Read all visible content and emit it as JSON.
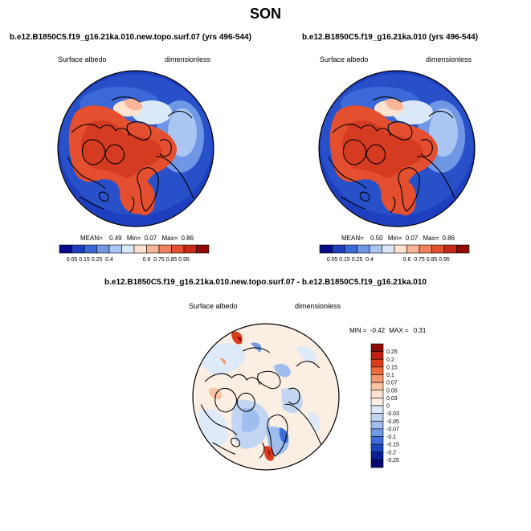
{
  "season": "SON",
  "panels": [
    {
      "case": "b.e12.B1850C5.f19_g16.21ka.010.new.topo.surf.07 (yrs 496-544)",
      "variable": "Surface albedo",
      "units": "dimensionless",
      "stats": {
        "mean_label": "MEAN=",
        "mean": "0.49",
        "min_label": "Min=",
        "min": "0.07",
        "max_label": "Max=",
        "max": "0.86"
      }
    },
    {
      "case": "b.e12.B1850C5.f19_g16.21ka.010 (yrs 496-544)",
      "variable": "Surface albedo",
      "units": "dimensionless",
      "stats": {
        "mean_label": "MEAN=",
        "mean": "0.50",
        "min_label": "Min=",
        "min": "0.07",
        "max_label": "Max=",
        "max": "0.86"
      }
    }
  ],
  "diff": {
    "case": "b.e12.B1850C5.f19_g16.21ka.010.new.topo.surf.07 - b.e12.B1850C5.f19_g16.21ka.010",
    "variable": "Surface albedo",
    "units": "dimensionless",
    "stats": {
      "min_label": "MIN =",
      "min": "-0.42",
      "max_label": "MAX =",
      "max": "0.31"
    }
  },
  "albedo_colorbar": {
    "labels": [
      "0.05",
      "0.15",
      "0.25",
      "0.4",
      "0.6",
      "0.75",
      "0.85",
      "0.95"
    ],
    "colors": [
      "#08088a",
      "#1e3fbf",
      "#3b6ad8",
      "#6f97e6",
      "#a9c6f2",
      "#dbe8fa",
      "#fde3d0",
      "#f9b595",
      "#f2805c",
      "#e4502f",
      "#c82a16",
      "#8f0b06"
    ]
  },
  "diff_colorbar": {
    "labels": [
      "0.25",
      "0.2",
      "0.15",
      "0.1",
      "0.07",
      "0.05",
      "0.03",
      "0",
      "-0.03",
      "-0.05",
      "-0.07",
      "-0.1",
      "-0.15",
      "-0.2",
      "-0.25"
    ],
    "colors": [
      "#8f0b06",
      "#c0200f",
      "#dc3c1c",
      "#ee6a3e",
      "#f59a70",
      "#f9c3a3",
      "#fde2cf",
      "#fbefe4",
      "#dfeaf8",
      "#c2d6f3",
      "#9fbdee",
      "#6e9ae6",
      "#3d6fdc",
      "#1c44c0",
      "#0a1f95",
      "#05086e"
    ]
  }
}
